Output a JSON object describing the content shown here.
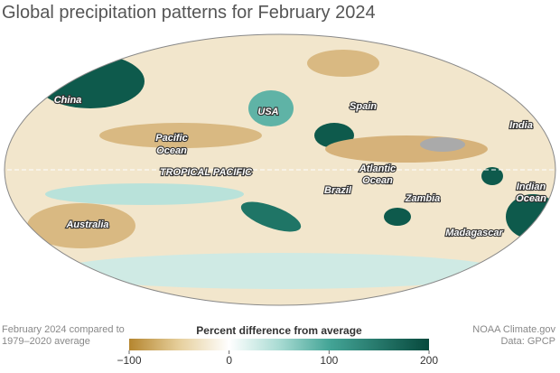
{
  "header": {
    "title": "Global precipitation patterns for February 2024"
  },
  "map": {
    "labels": {
      "china": "China",
      "usa": "USA",
      "spain": "Spain",
      "india": "India",
      "pacific": [
        "Pacific",
        "Ocean"
      ],
      "tropical": "TROPICAL PACIFIC",
      "brazil": "Brazil",
      "atlantic": [
        "Atlantic",
        "Ocean"
      ],
      "zambia": "Zambia",
      "indian": [
        "Indian",
        "Ocean"
      ],
      "australia": "Australia",
      "madagascar": "Madagascar"
    }
  },
  "footer": {
    "note": [
      "February 2024 compared to",
      "1979–2020 average"
    ],
    "credit": [
      "NOAA Climate.gov",
      "Data: GPCP"
    ]
  },
  "colorbar": {
    "title": "Percent difference from average",
    "lim": [
      -100,
      200
    ],
    "ticks": [
      {
        "value": -100,
        "label": "−100"
      },
      0,
      100,
      200
    ],
    "stops": [
      {
        "value": -100,
        "color": "#b5862f"
      },
      {
        "value": -50,
        "color": "#e6cf9c"
      },
      {
        "value": 0,
        "color": "#ffffff"
      },
      {
        "value": 50,
        "color": "#a9dbd3"
      },
      {
        "value": 100,
        "color": "#44a597"
      },
      {
        "value": 200,
        "color": "#07493d"
      }
    ]
  }
}
